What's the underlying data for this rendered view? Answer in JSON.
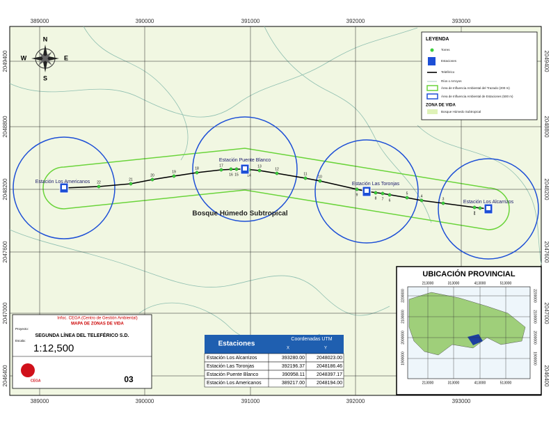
{
  "map": {
    "x_labels": [
      "389000",
      "390000",
      "391000",
      "392000",
      "393000"
    ],
    "y_labels": [
      "2049400",
      "2048800",
      "2048200",
      "2047600",
      "2047000",
      "2046400"
    ],
    "zone_label": "Bosque Húmedo Subtropical",
    "compass": [
      "N",
      "E",
      "S",
      "W"
    ]
  },
  "stations": [
    "Estación Los Americanos",
    "Estación Puente Blanco",
    "Estación Las Toronjas",
    "Estación Los Alcarrizos"
  ],
  "towers": [
    "1",
    "2",
    "3",
    "4",
    "5",
    "6",
    "7",
    "8",
    "9",
    "10",
    "11",
    "12",
    "13",
    "14",
    "15",
    "16",
    "17",
    "18",
    "19",
    "20",
    "21",
    "22"
  ],
  "legend": {
    "title": "LEYENDA",
    "items": [
      "Torres",
      "Estaciones",
      "Teleférico",
      "Ríos o Arroyos",
      "Área de Influencia Ambiental del Trazado (200 m)",
      "Área de Influencia Ambiental de Estaciones (500 m)"
    ],
    "zone_title": "ZONA DE VIDA",
    "zone_item": "Bosque Húmedo Subtropical"
  },
  "title_block": {
    "org": "Infoc. CEGA (Centro de Gestión Ambiental)",
    "map_title": "MAPA DE ZONAS DE VIDA",
    "project_label": "Proyecto:",
    "project": "SEGUNDA LÍNEA DEL TELEFÉRICO S.D.",
    "scale_label": "Escala:",
    "scale": "1:12,500",
    "logo": "CEGA",
    "sheet": "03"
  },
  "table": {
    "header": [
      "Estaciones",
      "Coordenadas UTM"
    ],
    "subheader": [
      "X",
      "Y"
    ],
    "rows": [
      [
        "Estación Los Alcarrizos",
        "393280.00",
        "2048023.00"
      ],
      [
        "Estación Las Toronjas",
        "392196.37",
        "2048186.46"
      ],
      [
        "Estación Puente Blanco",
        "390958.11",
        "2048397.17"
      ],
      [
        "Estación Los Americanos",
        "389217.00",
        "2048194.00"
      ]
    ]
  },
  "inset": {
    "title": "UBICACIÓN PROVINCIAL",
    "x_labels": [
      "213000",
      "313000",
      "413000",
      "513000"
    ],
    "y_labels": [
      "2200000",
      "2100000",
      "2000000",
      "1900000"
    ]
  }
}
